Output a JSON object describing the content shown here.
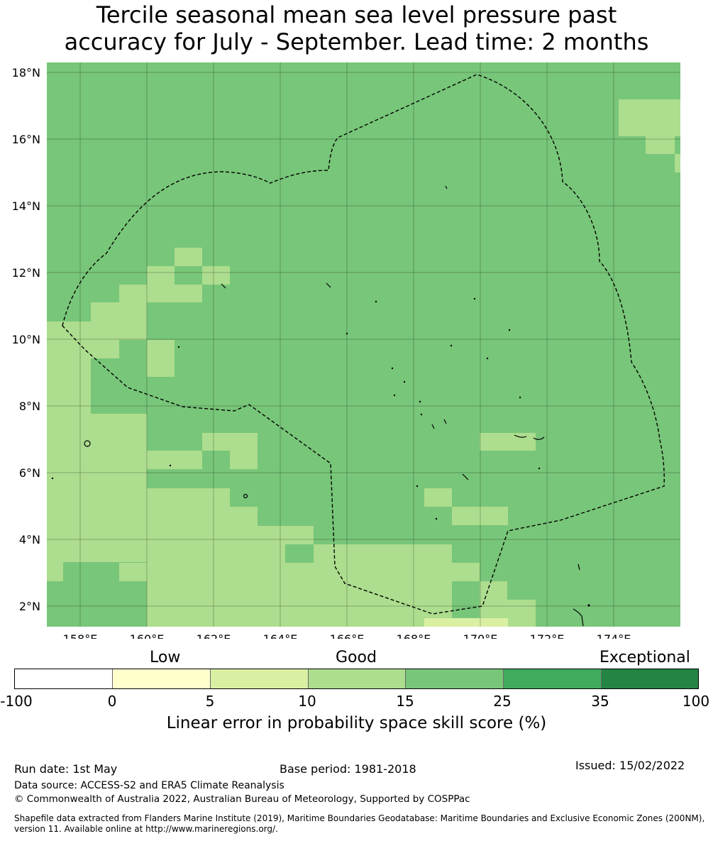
{
  "title_line1": "Tercile seasonal mean sea level pressure past",
  "title_line2": "accuracy for July - September. Lead time: 2 months",
  "map": {
    "lat_labels": [
      "18°N",
      "16°N",
      "14°N",
      "12°N",
      "10°N",
      "8°N",
      "6°N",
      "4°N",
      "2°N"
    ],
    "lon_labels": [
      "158°E",
      "160°E",
      "162°E",
      "164°E",
      "166°E",
      "168°E",
      "170°E",
      "172°E",
      "174°E"
    ],
    "lon_range": [
      157.0,
      176.0
    ],
    "lat_range": [
      1.4,
      18.3
    ],
    "colors": {
      "band_15_25": "#78c679",
      "band_10_15": "#addd8e",
      "band_5_10": "#d9f0a3"
    }
  },
  "colorbar": {
    "category_labels": [
      "Low",
      "Good",
      "Exceptional"
    ],
    "ticks": [
      "-100",
      "0",
      "5",
      "10",
      "15",
      "25",
      "35",
      "100"
    ],
    "colors": [
      "#ffffff",
      "#ffffcc",
      "#d9f0a3",
      "#addd8e",
      "#78c679",
      "#41ab5d",
      "#238443"
    ],
    "label": "Linear error in probability space skill score (%)"
  },
  "footer": {
    "run_date": "Run date: 1st May",
    "base_period": "Base period: 1981-2018",
    "issued": "Issued: 15/02/2022",
    "data_source": "Data source: ACCESS-S2 and ERA5 Climate Reanalysis",
    "copyright": "© Commonwealth of Australia 2022, Australian Bureau of Meteorology, Supported by COSPPac",
    "shapefile_line1": "Shapefile data extracted from Flanders Marine Institute (2019), Maritime Boundaries Geodatabase: Maritime Boundaries and Exclusive Economic Zones (200NM),",
    "shapefile_line2": "version 11. Available online at http://www.marineregions.org/."
  }
}
